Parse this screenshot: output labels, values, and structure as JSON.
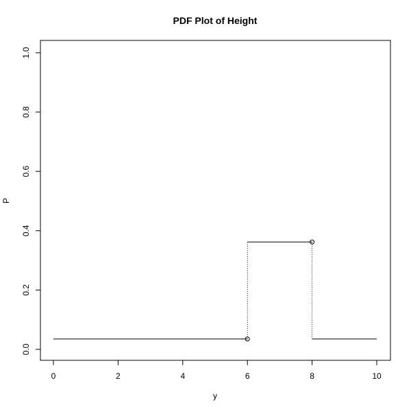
{
  "chart_data": {
    "type": "line",
    "title": "PDF Plot of Height",
    "xlabel": "y",
    "ylabel": "P",
    "xlim": [
      0,
      10
    ],
    "ylim": [
      0,
      1
    ],
    "x_ticks": [
      0,
      2,
      4,
      6,
      8,
      10
    ],
    "y_ticks": [
      0.0,
      0.2,
      0.4,
      0.6,
      0.8,
      1.0
    ],
    "x_tick_labels": [
      "0",
      "2",
      "4",
      "6",
      "8",
      "10"
    ],
    "y_tick_labels": [
      "0.0",
      "0.2",
      "0.4",
      "0.6",
      "0.8",
      "1.0"
    ],
    "grid": false,
    "legend": "none",
    "segments": [
      {
        "x_start": 0,
        "x_end": 6,
        "value": 0.035
      },
      {
        "x_start": 6,
        "x_end": 8,
        "value": 0.362
      },
      {
        "x_start": 8,
        "x_end": 10,
        "value": 0.035
      }
    ],
    "jump_points": [
      {
        "x": 6,
        "y": 0.035,
        "y_next": 0.362
      },
      {
        "x": 8,
        "y": 0.362,
        "y_next": 0.035
      }
    ],
    "colors": {
      "line": "#000000",
      "dotted": "#000000",
      "background": "#ffffff"
    }
  }
}
